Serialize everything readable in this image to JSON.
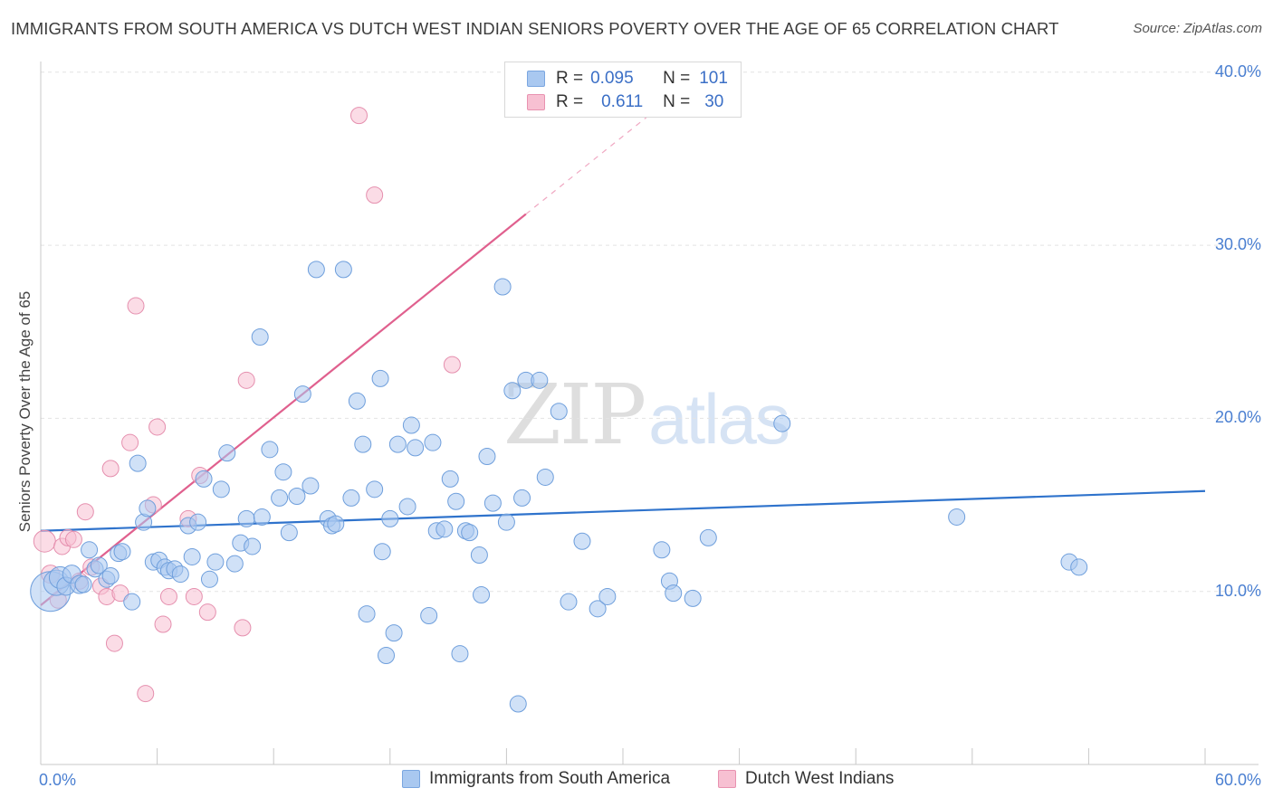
{
  "title": "IMMIGRANTS FROM SOUTH AMERICA VS DUTCH WEST INDIAN SENIORS POVERTY OVER THE AGE OF 65 CORRELATION CHART",
  "source": "Source: ZipAtlas.com",
  "watermark": {
    "zip": "ZIP",
    "atlas": "atlas"
  },
  "stats": [
    {
      "r_label": "R =",
      "r_value": "0.095",
      "n_label": "N =",
      "n_value": "101",
      "color": "#a9c8f0",
      "border": "#7aa6e0"
    },
    {
      "r_label": "R =",
      "r_value": "0.611",
      "n_label": "N =",
      "n_value": "30",
      "color": "#f7c0d2",
      "border": "#e892b0"
    }
  ],
  "legend": [
    {
      "label": "Immigrants from South America",
      "color": "#a9c8f0",
      "border": "#7aa6e0"
    },
    {
      "label": "Dutch West Indians",
      "color": "#f7c0d2",
      "border": "#e892b0"
    }
  ],
  "colors": {
    "blue_fill": "#a9c8f0",
    "blue_stroke": "#6f9fdc",
    "blue_line": "#2f73cc",
    "pink_fill": "#f7c0d2",
    "pink_stroke": "#e58fae",
    "pink_line": "#e0608e",
    "grid": "#e3e3e3",
    "tick_text": "#4a7fd1"
  },
  "chart_data": {
    "type": "scatter",
    "title": "IMMIGRANTS FROM SOUTH AMERICA VS DUTCH WEST INDIAN SENIORS POVERTY OVER THE AGE OF 65 CORRELATION CHART",
    "xlabel": "",
    "ylabel": "Seniors Poverty Over the Age of 65",
    "xlim": [
      0,
      60
    ],
    "ylim": [
      0,
      40
    ],
    "x_tick_labels": [
      {
        "value": 0,
        "label": "0.0%"
      },
      {
        "value": 60,
        "label": "60.0%"
      }
    ],
    "y_tick_labels": [
      {
        "value": 10,
        "label": "10.0%"
      },
      {
        "value": 20,
        "label": "20.0%"
      },
      {
        "value": 30,
        "label": "30.0%"
      },
      {
        "value": 40,
        "label": "40.0%"
      }
    ],
    "grid": "horizontal dashed",
    "legend_position": "bottom",
    "series": [
      {
        "name": "Immigrants from South America",
        "color": "#a9c8f0",
        "trend": {
          "x": [
            0,
            60
          ],
          "y": [
            13.5,
            15.8
          ],
          "dashed_beyond": null
        },
        "points": [
          [
            0.5,
            10.0,
            22
          ],
          [
            0.8,
            10.5,
            14
          ],
          [
            1.0,
            10.8,
            12
          ],
          [
            1.3,
            10.3,
            10
          ],
          [
            1.6,
            11.0,
            10
          ],
          [
            2.0,
            10.4,
            10
          ],
          [
            2.2,
            10.4,
            9
          ],
          [
            2.5,
            12.4,
            9
          ],
          [
            2.8,
            11.3,
            9
          ],
          [
            3.0,
            11.5,
            9
          ],
          [
            3.4,
            10.7,
            9
          ],
          [
            3.6,
            10.9,
            9
          ],
          [
            4.0,
            12.2,
            9
          ],
          [
            4.2,
            12.3,
            9
          ],
          [
            4.7,
            9.4,
            9
          ],
          [
            5.0,
            17.4,
            9
          ],
          [
            5.3,
            14.0,
            9
          ],
          [
            5.5,
            14.8,
            9
          ],
          [
            5.8,
            11.7,
            9
          ],
          [
            6.1,
            11.8,
            9
          ],
          [
            6.4,
            11.4,
            9
          ],
          [
            6.6,
            11.2,
            9
          ],
          [
            6.9,
            11.3,
            9
          ],
          [
            7.2,
            11.0,
            9
          ],
          [
            7.6,
            13.8,
            9
          ],
          [
            7.8,
            12.0,
            9
          ],
          [
            8.1,
            14.0,
            9
          ],
          [
            8.4,
            16.5,
            9
          ],
          [
            8.7,
            10.7,
            9
          ],
          [
            9.0,
            11.7,
            9
          ],
          [
            9.3,
            15.9,
            9
          ],
          [
            9.6,
            18.0,
            9
          ],
          [
            10.0,
            11.6,
            9
          ],
          [
            10.3,
            12.8,
            9
          ],
          [
            10.6,
            14.2,
            9
          ],
          [
            10.9,
            12.6,
            9
          ],
          [
            11.4,
            14.3,
            9
          ],
          [
            11.3,
            24.7,
            9
          ],
          [
            11.8,
            18.2,
            9
          ],
          [
            12.3,
            15.4,
            9
          ],
          [
            12.5,
            16.9,
            9
          ],
          [
            12.8,
            13.4,
            9
          ],
          [
            13.2,
            15.5,
            9
          ],
          [
            13.5,
            21.4,
            9
          ],
          [
            13.9,
            16.1,
            9
          ],
          [
            14.2,
            28.6,
            9
          ],
          [
            14.8,
            14.2,
            9
          ],
          [
            15.0,
            13.8,
            9
          ],
          [
            15.2,
            13.9,
            9
          ],
          [
            15.6,
            28.6,
            9
          ],
          [
            16.0,
            15.4,
            9
          ],
          [
            16.3,
            21.0,
            9
          ],
          [
            16.6,
            18.5,
            9
          ],
          [
            16.8,
            8.7,
            9
          ],
          [
            17.2,
            15.9,
            9
          ],
          [
            17.5,
            22.3,
            9
          ],
          [
            17.6,
            12.3,
            9
          ],
          [
            17.8,
            6.3,
            9
          ],
          [
            18.0,
            14.2,
            9
          ],
          [
            18.2,
            7.6,
            9
          ],
          [
            18.4,
            18.5,
            9
          ],
          [
            18.9,
            14.9,
            9
          ],
          [
            19.1,
            19.6,
            9
          ],
          [
            19.3,
            18.3,
            9
          ],
          [
            20.0,
            8.6,
            9
          ],
          [
            20.2,
            18.6,
            9
          ],
          [
            20.4,
            13.5,
            9
          ],
          [
            20.8,
            13.6,
            9
          ],
          [
            21.1,
            16.5,
            9
          ],
          [
            21.4,
            15.2,
            9
          ],
          [
            21.6,
            6.4,
            9
          ],
          [
            21.9,
            13.5,
            9
          ],
          [
            22.1,
            13.4,
            9
          ],
          [
            22.6,
            12.1,
            9
          ],
          [
            22.7,
            9.8,
            9
          ],
          [
            23.0,
            17.8,
            9
          ],
          [
            23.3,
            15.1,
            9
          ],
          [
            23.8,
            27.6,
            9
          ],
          [
            24.0,
            14.0,
            9
          ],
          [
            24.3,
            21.6,
            9
          ],
          [
            24.6,
            3.5,
            9
          ],
          [
            24.8,
            15.4,
            9
          ],
          [
            25.0,
            22.2,
            9
          ],
          [
            25.7,
            22.2,
            9
          ],
          [
            26.0,
            16.6,
            9
          ],
          [
            26.7,
            20.4,
            9
          ],
          [
            27.2,
            9.4,
            9
          ],
          [
            27.9,
            12.9,
            9
          ],
          [
            28.7,
            9.0,
            9
          ],
          [
            29.2,
            9.7,
            9
          ],
          [
            32.0,
            12.4,
            9
          ],
          [
            32.4,
            10.6,
            9
          ],
          [
            32.6,
            9.9,
            9
          ],
          [
            33.6,
            9.6,
            9
          ],
          [
            34.4,
            13.1,
            9
          ],
          [
            38.2,
            19.7,
            9
          ],
          [
            47.2,
            14.3,
            9
          ],
          [
            53.0,
            11.7,
            9
          ],
          [
            53.5,
            11.4,
            9
          ]
        ]
      },
      {
        "name": "Dutch West Indians",
        "color": "#f7c0d2",
        "trend": {
          "x": [
            0,
            25
          ],
          "y": [
            9.2,
            31.8
          ],
          "dashed_beyond": {
            "x": [
              25,
              32
            ],
            "y": [
              31.8,
              38.1
            ]
          }
        },
        "points": [
          [
            0.2,
            12.9,
            12
          ],
          [
            0.5,
            11.0,
            10
          ],
          [
            1.1,
            12.6,
            9
          ],
          [
            1.4,
            13.1,
            9
          ],
          [
            1.7,
            13.0,
            9
          ],
          [
            2.0,
            10.6,
            9
          ],
          [
            2.3,
            14.6,
            9
          ],
          [
            2.6,
            11.4,
            9
          ],
          [
            3.1,
            10.3,
            9
          ],
          [
            3.4,
            9.7,
            9
          ],
          [
            3.6,
            17.1,
            9
          ],
          [
            3.8,
            7.0,
            9
          ],
          [
            4.1,
            9.9,
            9
          ],
          [
            4.6,
            18.6,
            9
          ],
          [
            4.9,
            26.5,
            9
          ],
          [
            5.4,
            4.1,
            9
          ],
          [
            5.8,
            15.0,
            9
          ],
          [
            6.0,
            19.5,
            9
          ],
          [
            6.3,
            8.1,
            9
          ],
          [
            6.6,
            9.7,
            9
          ],
          [
            7.6,
            14.2,
            9
          ],
          [
            7.9,
            9.7,
            9
          ],
          [
            8.2,
            16.7,
            9
          ],
          [
            8.6,
            8.8,
            9
          ],
          [
            10.4,
            7.9,
            9
          ],
          [
            10.6,
            22.2,
            9
          ],
          [
            16.4,
            37.5,
            9
          ],
          [
            17.2,
            32.9,
            9
          ],
          [
            21.2,
            23.1,
            9
          ],
          [
            0.9,
            9.5,
            9
          ]
        ]
      }
    ]
  }
}
